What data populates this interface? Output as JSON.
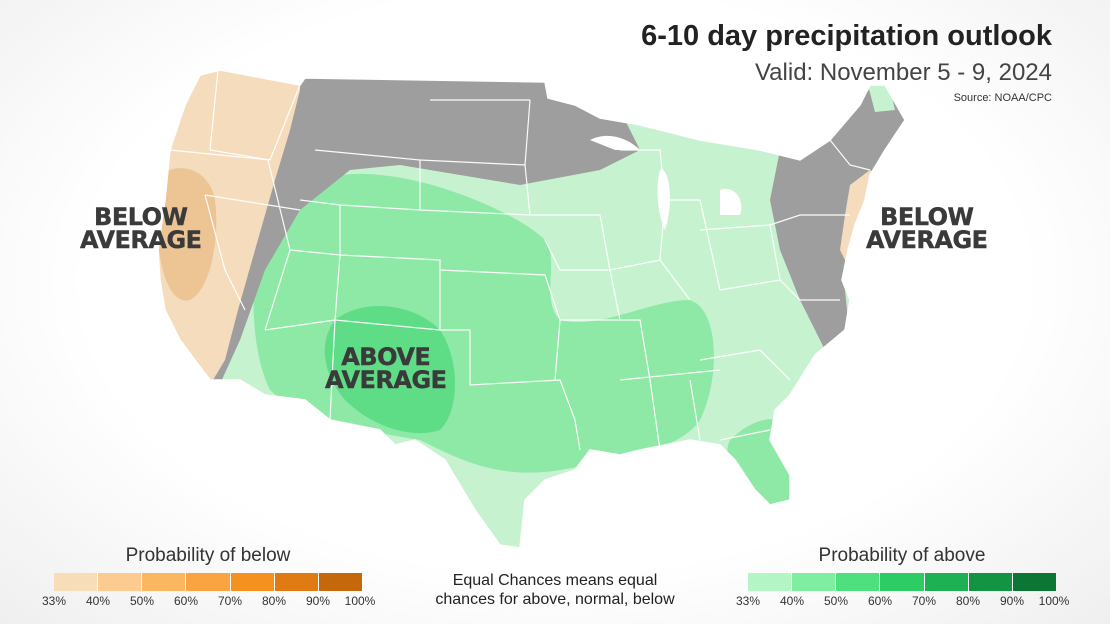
{
  "header": {
    "title": "6-10 day precipitation outlook",
    "subtitle": "Valid: November 5 - 9, 2024",
    "source": "Source: NOAA/CPC"
  },
  "map_labels": {
    "west": [
      "BELOW",
      "AVERAGE"
    ],
    "east": [
      "BELOW",
      "AVERAGE"
    ],
    "center": [
      "ABOVE",
      "AVERAGE"
    ]
  },
  "colors": {
    "below_33": "#f4dcbc",
    "below_40": "#edc493",
    "gray_normal": "#9e9e9e",
    "above_33": "#c4f2cf",
    "above_40": "#8ee8a6",
    "above_50": "#5ed884",
    "state_line": "#ffffff"
  },
  "legend_below": {
    "title": "Probability of below",
    "ticks": [
      "33%",
      "40%",
      "50%",
      "60%",
      "70%",
      "80%",
      "90%",
      "100%"
    ],
    "colors": [
      "#f8ddb9",
      "#fccb8f",
      "#fbb660",
      "#f9a441",
      "#f4911f",
      "#e07a12",
      "#c4680b"
    ]
  },
  "legend_above": {
    "title": "Probability of above",
    "ticks": [
      "33%",
      "40%",
      "50%",
      "60%",
      "70%",
      "80%",
      "90%",
      "100%"
    ],
    "colors": [
      "#b3f5c5",
      "#80eea0",
      "#4ee07e",
      "#2ecc64",
      "#1eb153",
      "#139443",
      "#0c7635"
    ]
  },
  "note": {
    "line1": "Equal Chances means equal",
    "line2": "chances for above, normal, below"
  }
}
